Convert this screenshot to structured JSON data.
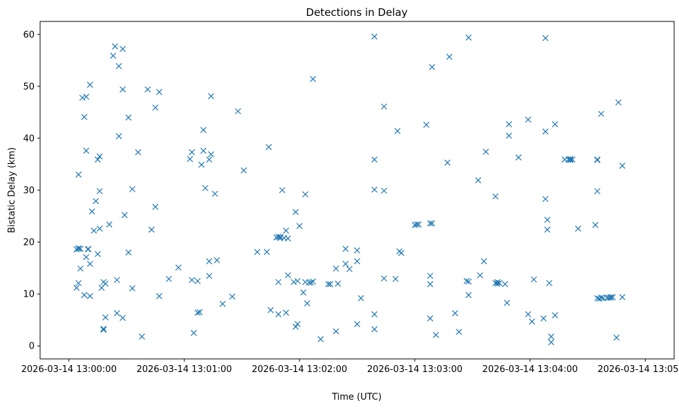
{
  "chart_data": {
    "type": "scatter",
    "title": "Detections in Delay",
    "xlabel": "Time (UTC)",
    "ylabel": "Bistatic Delay (km)",
    "marker": "x",
    "color": "#1f77b4",
    "grid": false,
    "xlim": [
      "2026-03-14 12:59:45",
      "2026-03-14 13:05:15"
    ],
    "ylim": [
      -2.5,
      62.5
    ],
    "x_ticks": [
      "2026-03-14 13:00:00",
      "2026-03-14 13:01:00",
      "2026-03-14 13:02:00",
      "2026-03-14 13:03:00",
      "2026-03-14 13:04:00",
      "2026-03-14 13:05:00"
    ],
    "y_ticks": [
      0,
      10,
      20,
      30,
      40,
      50,
      60
    ],
    "points": [
      {
        "x": "2026-03-14 13:00:04",
        "y": 11.2
      },
      {
        "x": "2026-03-14 13:00:04",
        "y": 18.6
      },
      {
        "x": "2026-03-14 13:00:05",
        "y": 18.7
      },
      {
        "x": "2026-03-14 13:00:05",
        "y": 18.8
      },
      {
        "x": "2026-03-14 13:00:05",
        "y": 12.1
      },
      {
        "x": "2026-03-14 13:00:05",
        "y": 33.0
      },
      {
        "x": "2026-03-14 13:00:06",
        "y": 18.7
      },
      {
        "x": "2026-03-14 13:00:06",
        "y": 14.9
      },
      {
        "x": "2026-03-14 13:00:07",
        "y": 47.8
      },
      {
        "x": "2026-03-14 13:00:08",
        "y": 9.8
      },
      {
        "x": "2026-03-14 13:00:08",
        "y": 44.1
      },
      {
        "x": "2026-03-14 13:00:09",
        "y": 17.1
      },
      {
        "x": "2026-03-14 13:00:09",
        "y": 48.0
      },
      {
        "x": "2026-03-14 13:00:09",
        "y": 37.6
      },
      {
        "x": "2026-03-14 13:00:10",
        "y": 18.7
      },
      {
        "x": "2026-03-14 13:00:10",
        "y": 18.6
      },
      {
        "x": "2026-03-14 13:00:11",
        "y": 50.3
      },
      {
        "x": "2026-03-14 13:00:11",
        "y": 15.8
      },
      {
        "x": "2026-03-14 13:00:11",
        "y": 9.6
      },
      {
        "x": "2026-03-14 13:00:12",
        "y": 25.9
      },
      {
        "x": "2026-03-14 13:00:13",
        "y": 22.2
      },
      {
        "x": "2026-03-14 13:00:14",
        "y": 27.9
      },
      {
        "x": "2026-03-14 13:00:15",
        "y": 35.9
      },
      {
        "x": "2026-03-14 13:00:15",
        "y": 17.7
      },
      {
        "x": "2026-03-14 13:00:16",
        "y": 36.5
      },
      {
        "x": "2026-03-14 13:00:16",
        "y": 29.8
      },
      {
        "x": "2026-03-14 13:00:16",
        "y": 22.6
      },
      {
        "x": "2026-03-14 13:00:17",
        "y": 11.2
      },
      {
        "x": "2026-03-14 13:00:18",
        "y": 12.3
      },
      {
        "x": "2026-03-14 13:00:18",
        "y": 3.3
      },
      {
        "x": "2026-03-14 13:00:18",
        "y": 3.1
      },
      {
        "x": "2026-03-14 13:00:19",
        "y": 12.0
      },
      {
        "x": "2026-03-14 13:00:19",
        "y": 5.5
      },
      {
        "x": "2026-03-14 13:00:21",
        "y": 23.4
      },
      {
        "x": "2026-03-14 13:00:23",
        "y": 55.9
      },
      {
        "x": "2026-03-14 13:00:24",
        "y": 57.7
      },
      {
        "x": "2026-03-14 13:00:25",
        "y": 12.7
      },
      {
        "x": "2026-03-14 13:00:25",
        "y": 6.3
      },
      {
        "x": "2026-03-14 13:00:26",
        "y": 40.4
      },
      {
        "x": "2026-03-14 13:00:26",
        "y": 53.9
      },
      {
        "x": "2026-03-14 13:00:28",
        "y": 57.2
      },
      {
        "x": "2026-03-14 13:00:28",
        "y": 49.4
      },
      {
        "x": "2026-03-14 13:00:28",
        "y": 5.4
      },
      {
        "x": "2026-03-14 13:00:29",
        "y": 25.2
      },
      {
        "x": "2026-03-14 13:00:31",
        "y": 44.0
      },
      {
        "x": "2026-03-14 13:00:31",
        "y": 18.0
      },
      {
        "x": "2026-03-14 13:00:33",
        "y": 30.2
      },
      {
        "x": "2026-03-14 13:00:33",
        "y": 11.1
      },
      {
        "x": "2026-03-14 13:00:36",
        "y": 37.3
      },
      {
        "x": "2026-03-14 13:00:38",
        "y": 1.8
      },
      {
        "x": "2026-03-14 13:00:41",
        "y": 49.4
      },
      {
        "x": "2026-03-14 13:00:43",
        "y": 22.4
      },
      {
        "x": "2026-03-14 13:00:45",
        "y": 45.9
      },
      {
        "x": "2026-03-14 13:00:45",
        "y": 26.8
      },
      {
        "x": "2026-03-14 13:00:47",
        "y": 48.9
      },
      {
        "x": "2026-03-14 13:00:47",
        "y": 9.6
      },
      {
        "x": "2026-03-14 13:00:52",
        "y": 12.9
      },
      {
        "x": "2026-03-14 13:00:57",
        "y": 15.1
      },
      {
        "x": "2026-03-14 13:01:03",
        "y": 36.0
      },
      {
        "x": "2026-03-14 13:01:04",
        "y": 37.3
      },
      {
        "x": "2026-03-14 13:01:04",
        "y": 12.7
      },
      {
        "x": "2026-03-14 13:01:05",
        "y": 2.5
      },
      {
        "x": "2026-03-14 13:01:07",
        "y": 6.4
      },
      {
        "x": "2026-03-14 13:01:07",
        "y": 12.5
      },
      {
        "x": "2026-03-14 13:01:08",
        "y": 6.5
      },
      {
        "x": "2026-03-14 13:01:09",
        "y": 34.9
      },
      {
        "x": "2026-03-14 13:01:10",
        "y": 41.6
      },
      {
        "x": "2026-03-14 13:01:10",
        "y": 37.6
      },
      {
        "x": "2026-03-14 13:01:11",
        "y": 30.4
      },
      {
        "x": "2026-03-14 13:01:13",
        "y": 35.9
      },
      {
        "x": "2026-03-14 13:01:13",
        "y": 16.3
      },
      {
        "x": "2026-03-14 13:01:13",
        "y": 13.5
      },
      {
        "x": "2026-03-14 13:01:14",
        "y": 48.1
      },
      {
        "x": "2026-03-14 13:01:14",
        "y": 36.9
      },
      {
        "x": "2026-03-14 13:01:16",
        "y": 29.3
      },
      {
        "x": "2026-03-14 13:01:17",
        "y": 16.5
      },
      {
        "x": "2026-03-14 13:01:20",
        "y": 8.1
      },
      {
        "x": "2026-03-14 13:01:25",
        "y": 9.5
      },
      {
        "x": "2026-03-14 13:01:28",
        "y": 45.2
      },
      {
        "x": "2026-03-14 13:01:31",
        "y": 33.8
      },
      {
        "x": "2026-03-14 13:01:38",
        "y": 18.1
      },
      {
        "x": "2026-03-14 13:01:43",
        "y": 18.1
      },
      {
        "x": "2026-03-14 13:01:44",
        "y": 38.3
      },
      {
        "x": "2026-03-14 13:01:45",
        "y": 6.9
      },
      {
        "x": "2026-03-14 13:01:48",
        "y": 20.9
      },
      {
        "x": "2026-03-14 13:01:49",
        "y": 12.3
      },
      {
        "x": "2026-03-14 13:01:49",
        "y": 21.0
      },
      {
        "x": "2026-03-14 13:01:49",
        "y": 6.1
      },
      {
        "x": "2026-03-14 13:01:50",
        "y": 20.8
      },
      {
        "x": "2026-03-14 13:01:50",
        "y": 21.0
      },
      {
        "x": "2026-03-14 13:01:51",
        "y": 30.0
      },
      {
        "x": "2026-03-14 13:01:52",
        "y": 20.8
      },
      {
        "x": "2026-03-14 13:01:53",
        "y": 22.2
      },
      {
        "x": "2026-03-14 13:01:53",
        "y": 6.4
      },
      {
        "x": "2026-03-14 13:01:54",
        "y": 20.7
      },
      {
        "x": "2026-03-14 13:01:54",
        "y": 13.6
      },
      {
        "x": "2026-03-14 13:01:57",
        "y": 12.3
      },
      {
        "x": "2026-03-14 13:01:58",
        "y": 25.8
      },
      {
        "x": "2026-03-14 13:01:58",
        "y": 3.7
      },
      {
        "x": "2026-03-14 13:01:59",
        "y": 4.2
      },
      {
        "x": "2026-03-14 13:01:59",
        "y": 12.5
      },
      {
        "x": "2026-03-14 13:02:00",
        "y": 23.1
      },
      {
        "x": "2026-03-14 13:02:02",
        "y": 10.3
      },
      {
        "x": "2026-03-14 13:02:03",
        "y": 29.2
      },
      {
        "x": "2026-03-14 13:02:03",
        "y": 12.3
      },
      {
        "x": "2026-03-14 13:02:04",
        "y": 8.2
      },
      {
        "x": "2026-03-14 13:02:05",
        "y": 12.2
      },
      {
        "x": "2026-03-14 13:02:06",
        "y": 12.2
      },
      {
        "x": "2026-03-14 13:02:07",
        "y": 12.4
      },
      {
        "x": "2026-03-14 13:02:07",
        "y": 51.4
      },
      {
        "x": "2026-03-14 13:02:11",
        "y": 1.3
      },
      {
        "x": "2026-03-14 13:02:15",
        "y": 11.9
      },
      {
        "x": "2026-03-14 13:02:16",
        "y": 11.9
      },
      {
        "x": "2026-03-14 13:02:19",
        "y": 14.9
      },
      {
        "x": "2026-03-14 13:02:19",
        "y": 2.8
      },
      {
        "x": "2026-03-14 13:02:20",
        "y": 12.0
      },
      {
        "x": "2026-03-14 13:02:24",
        "y": 18.7
      },
      {
        "x": "2026-03-14 13:02:24",
        "y": 15.8
      },
      {
        "x": "2026-03-14 13:02:26",
        "y": 14.8
      },
      {
        "x": "2026-03-14 13:02:30",
        "y": 18.4
      },
      {
        "x": "2026-03-14 13:02:30",
        "y": 16.3
      },
      {
        "x": "2026-03-14 13:02:30",
        "y": 4.2
      },
      {
        "x": "2026-03-14 13:02:32",
        "y": 9.2
      },
      {
        "x": "2026-03-14 13:02:39",
        "y": 35.9
      },
      {
        "x": "2026-03-14 13:02:39",
        "y": 30.1
      },
      {
        "x": "2026-03-14 13:02:39",
        "y": 59.6
      },
      {
        "x": "2026-03-14 13:02:39",
        "y": 6.1
      },
      {
        "x": "2026-03-14 13:02:39",
        "y": 3.2
      },
      {
        "x": "2026-03-14 13:02:44",
        "y": 46.1
      },
      {
        "x": "2026-03-14 13:02:44",
        "y": 29.9
      },
      {
        "x": "2026-03-14 13:02:44",
        "y": 13.0
      },
      {
        "x": "2026-03-14 13:02:50",
        "y": 12.9
      },
      {
        "x": "2026-03-14 13:02:51",
        "y": 41.4
      },
      {
        "x": "2026-03-14 13:02:52",
        "y": 18.2
      },
      {
        "x": "2026-03-14 13:02:53",
        "y": 17.9
      },
      {
        "x": "2026-03-14 13:03:00",
        "y": 23.3
      },
      {
        "x": "2026-03-14 13:03:01",
        "y": 23.4
      },
      {
        "x": "2026-03-14 13:03:02",
        "y": 23.4
      },
      {
        "x": "2026-03-14 13:03:06",
        "y": 42.6
      },
      {
        "x": "2026-03-14 13:03:08",
        "y": 13.5
      },
      {
        "x": "2026-03-14 13:03:08",
        "y": 5.3
      },
      {
        "x": "2026-03-14 13:03:08",
        "y": 23.6
      },
      {
        "x": "2026-03-14 13:03:08",
        "y": 11.9
      },
      {
        "x": "2026-03-14 13:03:09",
        "y": 53.7
      },
      {
        "x": "2026-03-14 13:03:09",
        "y": 23.6
      },
      {
        "x": "2026-03-14 13:03:11",
        "y": 2.1
      },
      {
        "x": "2026-03-14 13:03:17",
        "y": 35.3
      },
      {
        "x": "2026-03-14 13:03:18",
        "y": 55.7
      },
      {
        "x": "2026-03-14 13:03:21",
        "y": 6.3
      },
      {
        "x": "2026-03-14 13:03:23",
        "y": 2.7
      },
      {
        "x": "2026-03-14 13:03:27",
        "y": 12.5
      },
      {
        "x": "2026-03-14 13:03:28",
        "y": 59.4
      },
      {
        "x": "2026-03-14 13:03:28",
        "y": 12.4
      },
      {
        "x": "2026-03-14 13:03:28",
        "y": 9.8
      },
      {
        "x": "2026-03-14 13:03:33",
        "y": 31.9
      },
      {
        "x": "2026-03-14 13:03:34",
        "y": 13.6
      },
      {
        "x": "2026-03-14 13:03:36",
        "y": 16.3
      },
      {
        "x": "2026-03-14 13:03:37",
        "y": 37.4
      },
      {
        "x": "2026-03-14 13:03:42",
        "y": 28.8
      },
      {
        "x": "2026-03-14 13:03:42",
        "y": 12.1
      },
      {
        "x": "2026-03-14 13:03:43",
        "y": 12.3
      },
      {
        "x": "2026-03-14 13:03:43",
        "y": 12.0
      },
      {
        "x": "2026-03-14 13:03:44",
        "y": 12.1
      },
      {
        "x": "2026-03-14 13:03:47",
        "y": 11.9
      },
      {
        "x": "2026-03-14 13:03:48",
        "y": 8.3
      },
      {
        "x": "2026-03-14 13:03:49",
        "y": 40.5
      },
      {
        "x": "2026-03-14 13:03:49",
        "y": 42.7
      },
      {
        "x": "2026-03-14 13:03:54",
        "y": 36.3
      },
      {
        "x": "2026-03-14 13:03:59",
        "y": 43.6
      },
      {
        "x": "2026-03-14 13:03:59",
        "y": 6.1
      },
      {
        "x": "2026-03-14 13:04:01",
        "y": 4.7
      },
      {
        "x": "2026-03-14 13:04:02",
        "y": 12.8
      },
      {
        "x": "2026-03-14 13:04:07",
        "y": 5.3
      },
      {
        "x": "2026-03-14 13:04:08",
        "y": 41.3
      },
      {
        "x": "2026-03-14 13:04:08",
        "y": 59.3
      },
      {
        "x": "2026-03-14 13:04:08",
        "y": 28.3
      },
      {
        "x": "2026-03-14 13:04:09",
        "y": 24.3
      },
      {
        "x": "2026-03-14 13:04:09",
        "y": 22.4
      },
      {
        "x": "2026-03-14 13:04:10",
        "y": 12.1
      },
      {
        "x": "2026-03-14 13:04:11",
        "y": 0.7
      },
      {
        "x": "2026-03-14 13:04:11",
        "y": 1.8
      },
      {
        "x": "2026-03-14 13:04:13",
        "y": 42.7
      },
      {
        "x": "2026-03-14 13:04:13",
        "y": 5.9
      },
      {
        "x": "2026-03-14 13:04:18",
        "y": 35.9
      },
      {
        "x": "2026-03-14 13:04:20",
        "y": 35.9
      },
      {
        "x": "2026-03-14 13:04:21",
        "y": 35.8
      },
      {
        "x": "2026-03-14 13:04:21",
        "y": 36.0
      },
      {
        "x": "2026-03-14 13:04:22",
        "y": 35.9
      },
      {
        "x": "2026-03-14 13:04:25",
        "y": 22.6
      },
      {
        "x": "2026-03-14 13:04:34",
        "y": 23.3
      },
      {
        "x": "2026-03-14 13:04:35",
        "y": 29.8
      },
      {
        "x": "2026-03-14 13:04:35",
        "y": 35.9
      },
      {
        "x": "2026-03-14 13:04:35",
        "y": 35.8
      },
      {
        "x": "2026-03-14 13:04:35",
        "y": 9.2
      },
      {
        "x": "2026-03-14 13:04:36",
        "y": 9.1
      },
      {
        "x": "2026-03-14 13:04:37",
        "y": 9.3
      },
      {
        "x": "2026-03-14 13:04:37",
        "y": 44.7
      },
      {
        "x": "2026-03-14 13:04:38",
        "y": 9.2
      },
      {
        "x": "2026-03-14 13:04:40",
        "y": 9.3
      },
      {
        "x": "2026-03-14 13:04:41",
        "y": 9.3
      },
      {
        "x": "2026-03-14 13:04:42",
        "y": 9.4
      },
      {
        "x": "2026-03-14 13:04:42",
        "y": 9.3
      },
      {
        "x": "2026-03-14 13:04:43",
        "y": 9.4
      },
      {
        "x": "2026-03-14 13:04:45",
        "y": 1.6
      },
      {
        "x": "2026-03-14 13:04:46",
        "y": 46.9
      },
      {
        "x": "2026-03-14 13:04:48",
        "y": 34.7
      },
      {
        "x": "2026-03-14 13:04:48",
        "y": 9.4
      }
    ]
  }
}
